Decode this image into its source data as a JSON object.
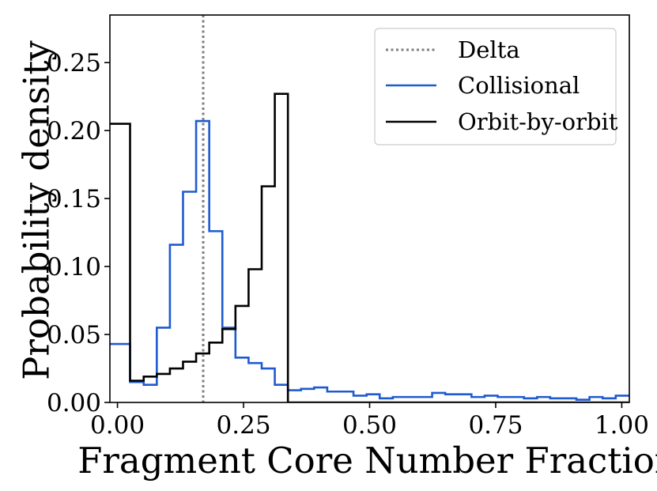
{
  "chart_data": {
    "type": "histogram",
    "title": "",
    "xlabel": "Fragment Core Number Fraction",
    "ylabel": "Probability density",
    "xlim": [
      -0.015,
      1.015
    ],
    "ylim": [
      0,
      0.285
    ],
    "xticks": [
      0.0,
      0.25,
      0.5,
      0.75,
      1.0
    ],
    "xtick_labels": [
      "0.00",
      "0.25",
      "0.50",
      "0.75",
      "1.00"
    ],
    "yticks": [
      0.0,
      0.05,
      0.1,
      0.15,
      0.2,
      0.25
    ],
    "ytick_labels": [
      "0.00",
      "0.05",
      "0.10",
      "0.15",
      "0.20",
      "0.25"
    ],
    "legend_position": "top-right",
    "delta_line": {
      "name": "Delta",
      "x": 0.17,
      "color": "#7f7f7f",
      "style": "dotted"
    },
    "series": [
      {
        "name": "Collisional",
        "color": "#1f5bd0",
        "bin_edges": [
          -0.02,
          0.025,
          0.052,
          0.078,
          0.104,
          0.13,
          0.156,
          0.182,
          0.208,
          0.234,
          0.26,
          0.286,
          0.312,
          0.338,
          0.364,
          0.39,
          0.416,
          0.442,
          0.468,
          0.494,
          0.52,
          0.546,
          0.572,
          0.598,
          0.624,
          0.65,
          0.676,
          0.702,
          0.728,
          0.754,
          0.78,
          0.806,
          0.832,
          0.858,
          0.884,
          0.91,
          0.936,
          0.962,
          0.988,
          1.02
        ],
        "values": [
          0.043,
          0.015,
          0.013,
          0.055,
          0.116,
          0.155,
          0.207,
          0.126,
          0.055,
          0.033,
          0.029,
          0.025,
          0.013,
          0.009,
          0.01,
          0.011,
          0.008,
          0.008,
          0.005,
          0.006,
          0.003,
          0.004,
          0.004,
          0.004,
          0.007,
          0.006,
          0.006,
          0.004,
          0.005,
          0.004,
          0.004,
          0.003,
          0.004,
          0.003,
          0.003,
          0.002,
          0.004,
          0.003,
          0.005
        ]
      },
      {
        "name": "Orbit-by-orbit",
        "color": "#000000",
        "bin_edges": [
          -0.02,
          0.025,
          0.052,
          0.078,
          0.104,
          0.13,
          0.156,
          0.182,
          0.208,
          0.234,
          0.26,
          0.286,
          0.312,
          0.338,
          1.02
        ],
        "values": [
          0.205,
          0.016,
          0.019,
          0.021,
          0.025,
          0.03,
          0.036,
          0.044,
          0.054,
          0.071,
          0.098,
          0.159,
          0.227,
          0.0
        ]
      }
    ]
  }
}
